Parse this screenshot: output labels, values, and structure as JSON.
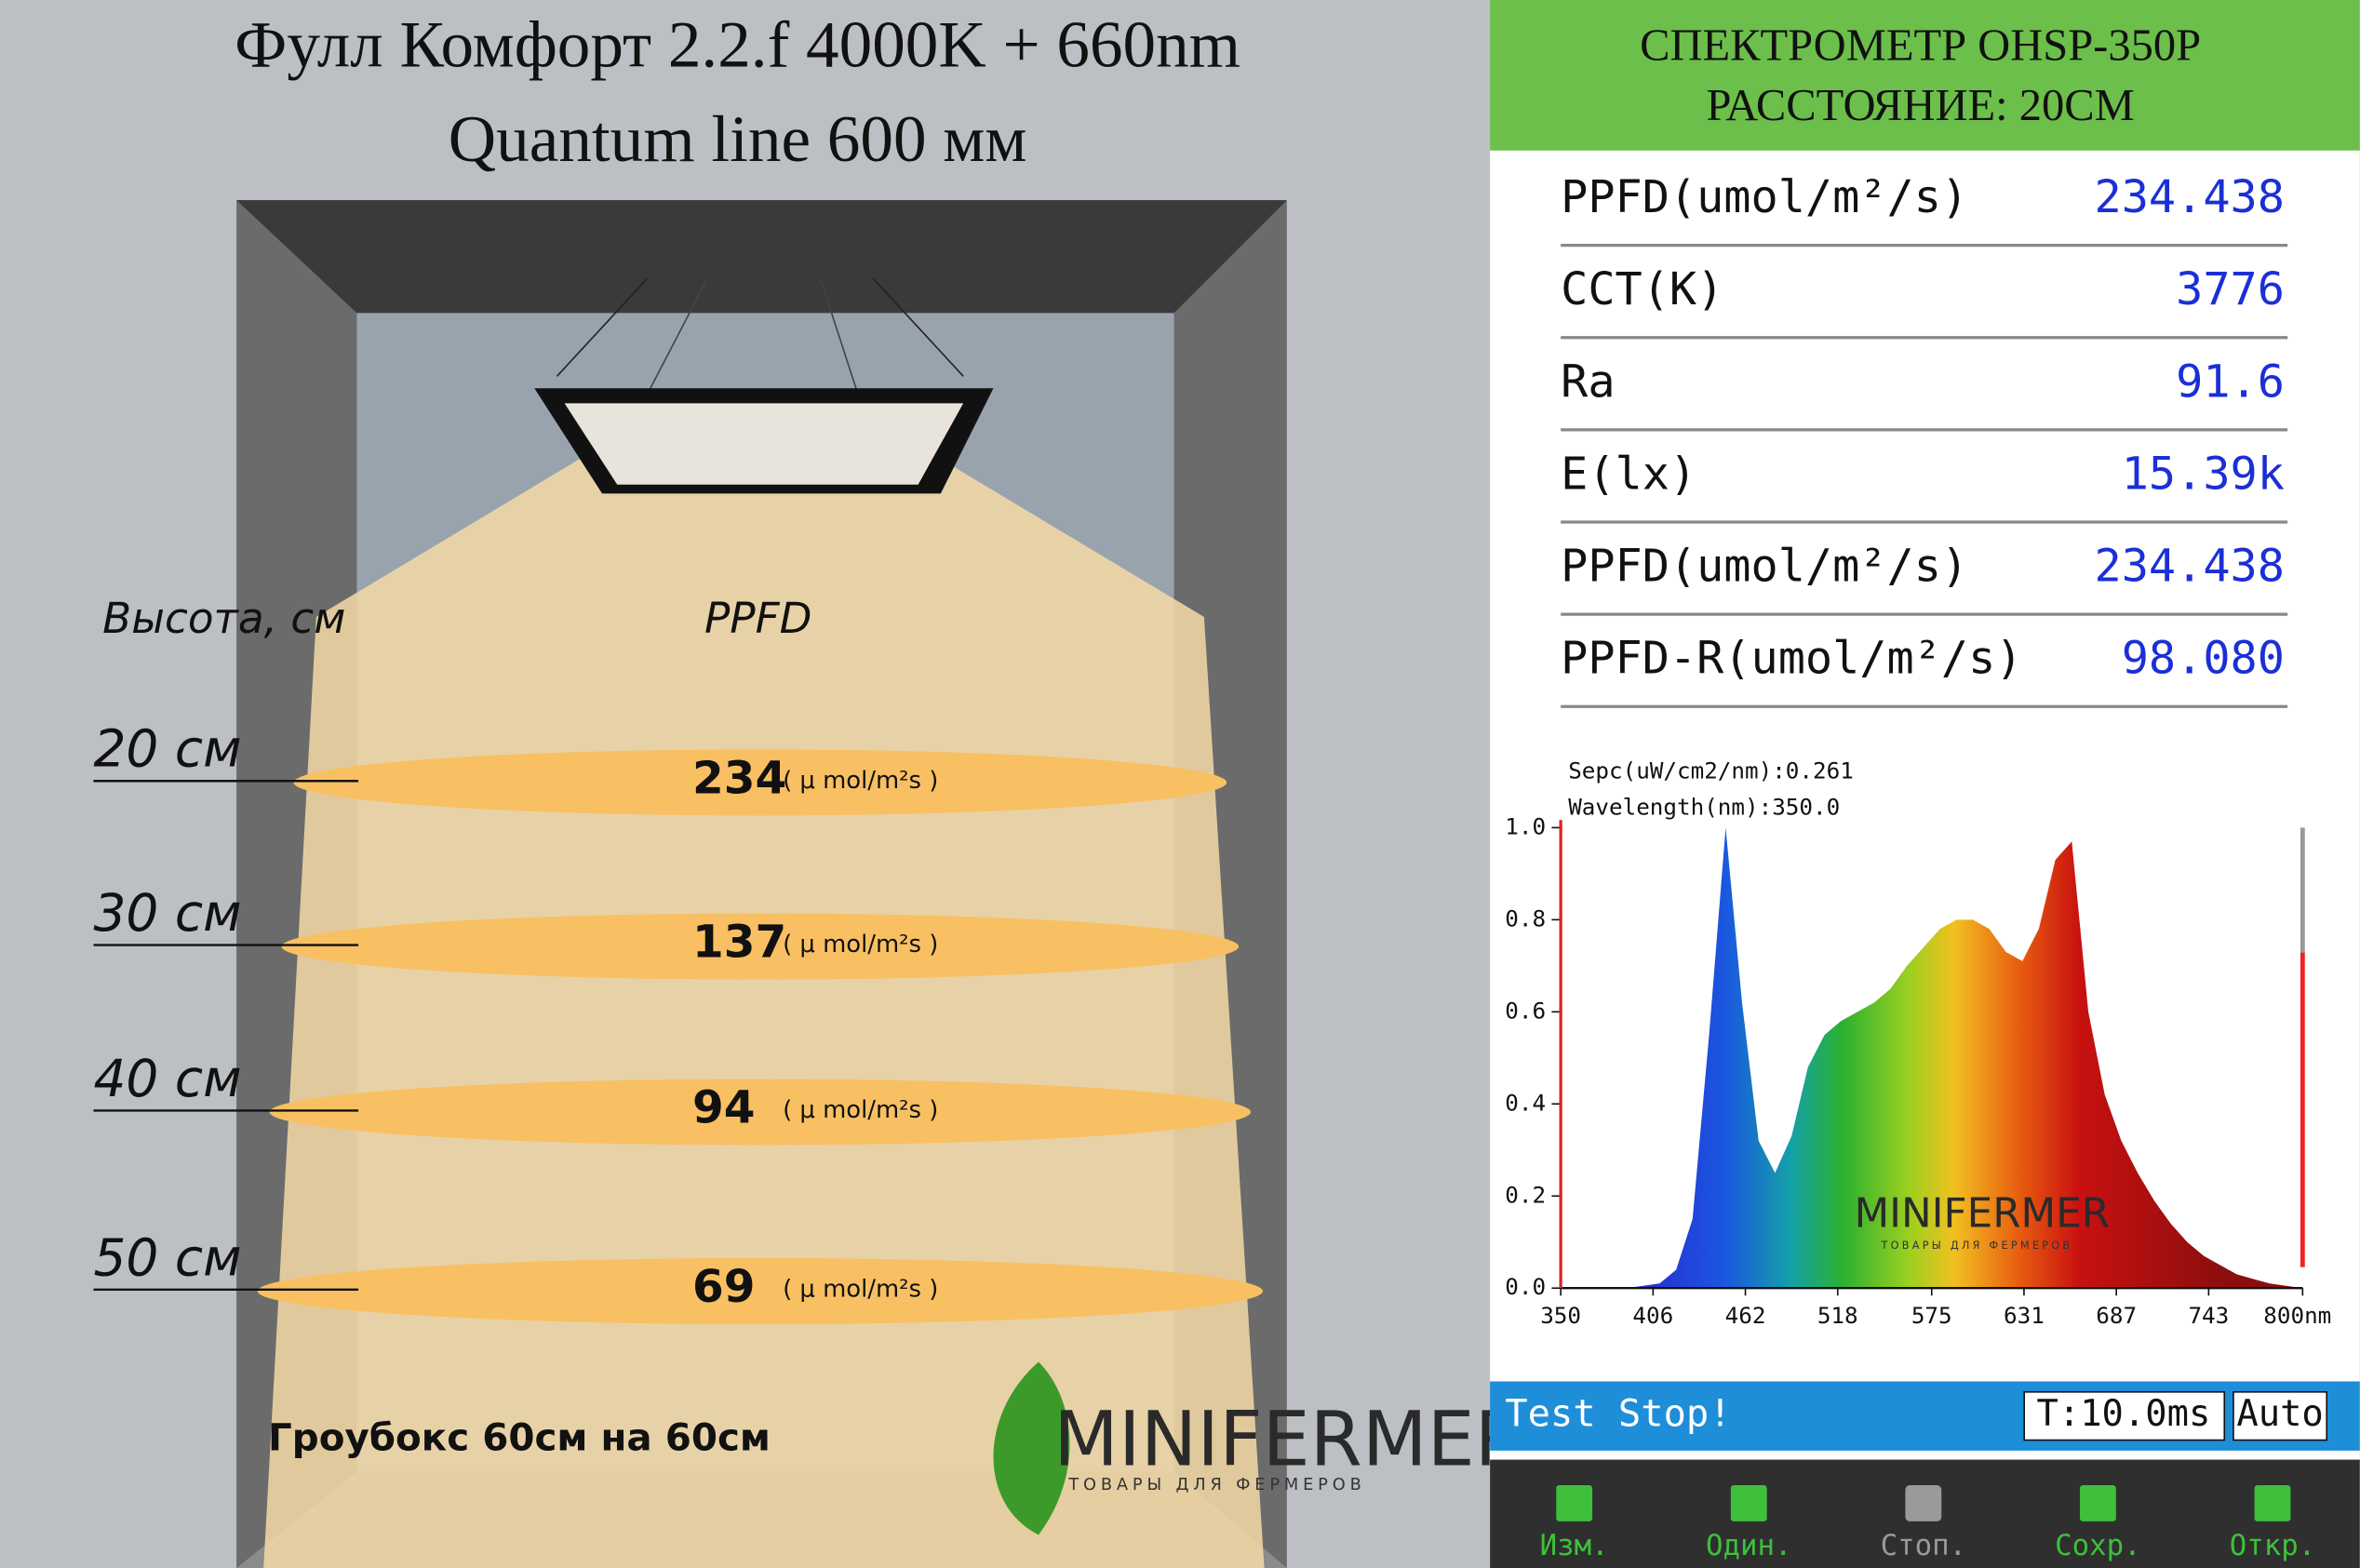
{
  "header": {
    "title_line1": "Фулл Комфорт 2.2.f 4000K + 660nm",
    "title_line2": "Quantum line 600 мм"
  },
  "infographic": {
    "height_label": "Высота, см",
    "ppfd_label": "PPFD",
    "levels": [
      {
        "height": "20 см",
        "ppfd": "234",
        "unit": "( μ mol/m²s )"
      },
      {
        "height": "30 см",
        "ppfd": "137",
        "unit": "( μ mol/m²s )"
      },
      {
        "height": "40 см",
        "ppfd": "94",
        "unit": "( μ mol/m²s )"
      },
      {
        "height": "50 см",
        "ppfd": "69",
        "unit": "( μ mol/m²s )"
      }
    ],
    "box_label": "Гроубокс 60см на 60см",
    "logo": "MINIFERMER",
    "logo_tagline": "ТОВАРЫ ДЛЯ ФЕРМЕРОВ"
  },
  "spectrometer": {
    "title_line1": "СПЕКТРОМЕТР OHSP-350P",
    "title_line2": "РАССТОЯНИЕ: 20СМ",
    "rows": [
      [
        "PPFD(umol/m²/s)",
        "234.438"
      ],
      [
        "CCT(K)",
        "3776"
      ],
      [
        "Ra",
        "91.6"
      ],
      [
        "E(lx)",
        "15.39k"
      ],
      [
        "PPFD(umol/m²/s)",
        "234.438"
      ],
      [
        "PPFD-R(umol/m²/s)",
        "98.080"
      ]
    ],
    "status": "Test Stop!",
    "time": "T:10.0ms",
    "mode": "Auto",
    "buttons": [
      "Изм.",
      "Один.",
      "Стоп.",
      "Сохр.",
      "Откр."
    ]
  },
  "chart_data": {
    "type": "area",
    "annotations": [
      "Sepc(uW/cm2/nm):0.261",
      "Wavelength(nm):350.0"
    ],
    "x": [
      350,
      360,
      370,
      380,
      390,
      400,
      410,
      420,
      430,
      440,
      450,
      460,
      470,
      480,
      490,
      500,
      510,
      520,
      530,
      540,
      550,
      560,
      570,
      580,
      590,
      600,
      610,
      620,
      630,
      640,
      650,
      660,
      670,
      680,
      690,
      700,
      710,
      720,
      730,
      740,
      750,
      760,
      770,
      780,
      790,
      800
    ],
    "values": [
      0,
      0,
      0,
      0,
      0,
      0.005,
      0.01,
      0.04,
      0.15,
      0.55,
      1.0,
      0.62,
      0.32,
      0.25,
      0.33,
      0.48,
      0.55,
      0.58,
      0.6,
      0.62,
      0.65,
      0.7,
      0.74,
      0.78,
      0.8,
      0.8,
      0.78,
      0.73,
      0.71,
      0.78,
      0.93,
      0.97,
      0.6,
      0.42,
      0.32,
      0.25,
      0.19,
      0.14,
      0.1,
      0.07,
      0.05,
      0.03,
      0.02,
      0.01,
      0.005,
      0
    ],
    "xlim": [
      350,
      800
    ],
    "xticks": [
      350,
      406,
      462,
      518,
      575,
      631,
      687,
      743,
      {
        "value": 800,
        "label": "800nm"
      }
    ],
    "ylim": [
      0,
      1
    ],
    "yticks": [
      {
        "value": 0,
        "label": "0.0"
      },
      0.2,
      0.4,
      0.6,
      0.8,
      {
        "value": 1,
        "label": "1.0"
      }
    ],
    "logo": "MINIFERMER",
    "logo_tagline": "ТОВАРЫ ДЛЯ ФЕРМЕРОВ"
  }
}
